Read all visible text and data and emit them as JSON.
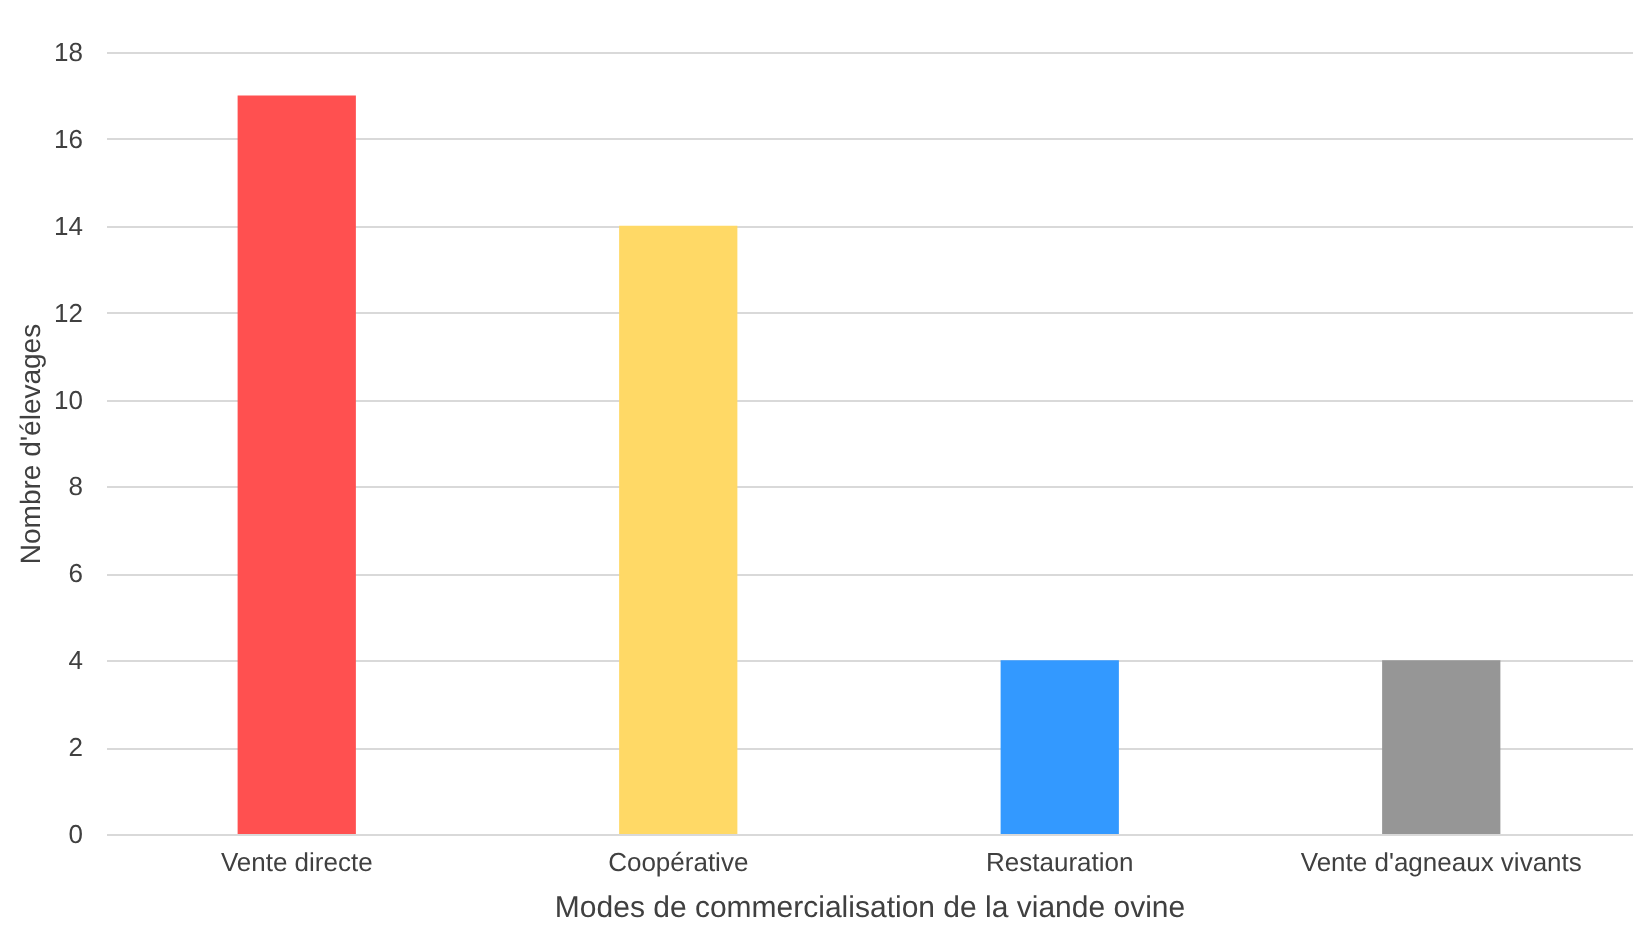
{
  "chart_data": {
    "type": "bar",
    "xlabel": "Modes de commercialisation de la viande ovine",
    "ylabel": "Nombre d'élevages",
    "categories": [
      "Vente directe",
      "Coopérative",
      "Restauration",
      "Vente d'agneaux vivants"
    ],
    "values": [
      17,
      14,
      4,
      4
    ],
    "colors": [
      "#ff5050",
      "#ffd966",
      "#3399ff",
      "#969696"
    ],
    "ylim": [
      0,
      18
    ],
    "yticks": [
      0,
      2,
      4,
      6,
      8,
      10,
      12,
      14,
      16,
      18
    ],
    "grid": "y"
  }
}
